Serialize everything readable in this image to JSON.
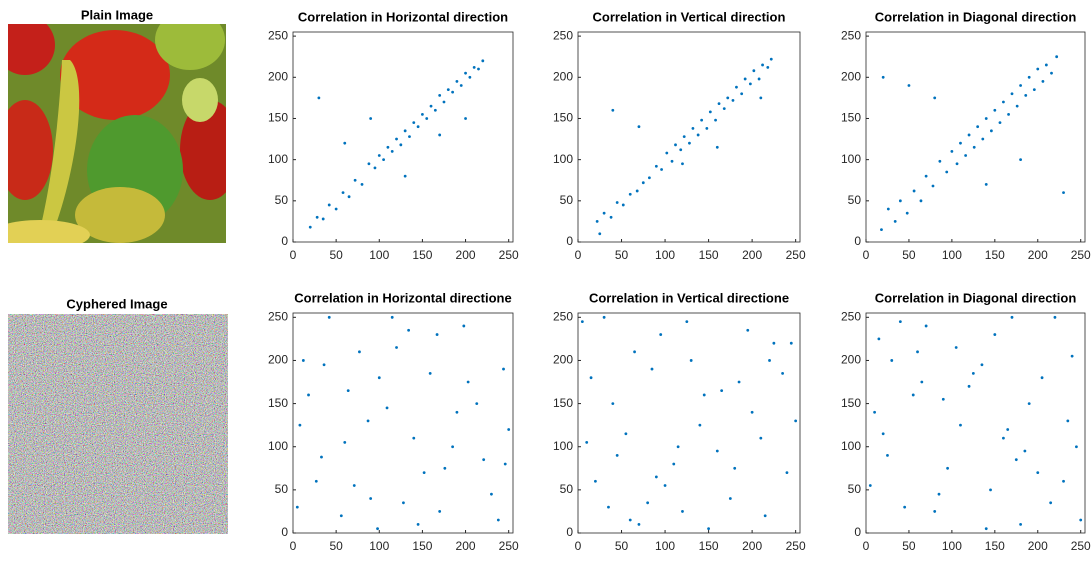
{
  "images": [
    {
      "title": "Plain Image"
    },
    {
      "title": "Cyphered Image"
    }
  ],
  "chart_data": [
    {
      "type": "scatter",
      "title": "Correlation in Horizontal direction",
      "color": "#0072bd",
      "x": [
        20,
        28,
        35,
        42,
        50,
        58,
        65,
        72,
        80,
        88,
        95,
        100,
        105,
        110,
        115,
        120,
        125,
        130,
        135,
        140,
        145,
        150,
        155,
        160,
        165,
        170,
        175,
        180,
        185,
        190,
        195,
        200,
        205,
        210,
        215,
        220,
        60,
        90,
        130,
        170,
        30,
        200
      ],
      "y": [
        18,
        30,
        28,
        45,
        40,
        60,
        55,
        75,
        70,
        95,
        90,
        105,
        100,
        115,
        110,
        125,
        118,
        135,
        128,
        145,
        140,
        155,
        150,
        165,
        160,
        178,
        170,
        185,
        182,
        195,
        190,
        205,
        200,
        212,
        210,
        220,
        120,
        150,
        80,
        130,
        175,
        150
      ],
      "xlim": [
        0,
        255
      ],
      "ylim": [
        0,
        255
      ],
      "xticks": [
        0,
        50,
        100,
        150,
        200,
        250
      ],
      "yticks": [
        0,
        50,
        100,
        150,
        200,
        250
      ]
    },
    {
      "type": "scatter",
      "title": "Correlation in Vertical direction",
      "color": "#0072bd",
      "x": [
        22,
        30,
        38,
        45,
        52,
        60,
        68,
        75,
        82,
        90,
        96,
        102,
        108,
        112,
        118,
        122,
        128,
        132,
        138,
        142,
        148,
        152,
        158,
        162,
        168,
        172,
        178,
        182,
        188,
        192,
        198,
        202,
        208,
        212,
        218,
        222,
        40,
        70,
        120,
        160,
        210,
        25
      ],
      "y": [
        25,
        35,
        30,
        48,
        45,
        58,
        62,
        72,
        78,
        92,
        88,
        108,
        98,
        118,
        112,
        128,
        120,
        138,
        130,
        148,
        138,
        158,
        148,
        168,
        162,
        175,
        172,
        188,
        180,
        198,
        192,
        208,
        198,
        215,
        212,
        222,
        160,
        140,
        95,
        115,
        175,
        10
      ],
      "xlim": [
        0,
        255
      ],
      "ylim": [
        0,
        255
      ],
      "xticks": [
        0,
        50,
        100,
        150,
        200,
        250
      ],
      "yticks": [
        0,
        50,
        100,
        150,
        200,
        250
      ]
    },
    {
      "type": "scatter",
      "title": "Correlation in Diagonal direction",
      "color": "#0072bd",
      "x": [
        18,
        26,
        34,
        40,
        48,
        56,
        64,
        70,
        78,
        86,
        94,
        100,
        106,
        110,
        116,
        120,
        126,
        130,
        136,
        140,
        146,
        150,
        156,
        160,
        166,
        170,
        176,
        180,
        186,
        190,
        196,
        200,
        206,
        210,
        216,
        222,
        20,
        50,
        80,
        140,
        180,
        230
      ],
      "y": [
        15,
        40,
        25,
        50,
        35,
        62,
        50,
        80,
        68,
        98,
        85,
        110,
        95,
        120,
        105,
        130,
        115,
        140,
        125,
        150,
        135,
        160,
        145,
        170,
        155,
        180,
        165,
        190,
        178,
        200,
        185,
        210,
        195,
        215,
        205,
        225,
        200,
        190,
        175,
        70,
        100,
        60
      ],
      "xlim": [
        0,
        255
      ],
      "ylim": [
        0,
        255
      ],
      "xticks": [
        0,
        50,
        100,
        150,
        200,
        250
      ],
      "yticks": [
        0,
        50,
        100,
        150,
        200,
        250
      ]
    },
    {
      "type": "scatter",
      "title": "Correlation in Horizontal directione",
      "color": "#0072bd",
      "x": [
        12,
        230,
        87,
        145,
        33,
        198,
        64,
        176,
        5,
        120,
        250,
        71,
        159,
        42,
        213,
        98,
        185,
        27,
        134,
        244,
        56,
        109,
        167,
        221,
        8,
        90,
        203,
        140,
        18,
        238,
        77,
        152,
        115,
        60,
        190,
        36,
        128,
        246,
        100,
        170
      ],
      "y": [
        200,
        45,
        130,
        10,
        88,
        240,
        165,
        75,
        30,
        215,
        120,
        55,
        185,
        250,
        150,
        5,
        100,
        60,
        235,
        190,
        20,
        145,
        230,
        85,
        125,
        40,
        175,
        110,
        160,
        15,
        210,
        70,
        250,
        105,
        140,
        195,
        35,
        80,
        180,
        25
      ],
      "xlim": [
        0,
        255
      ],
      "ylim": [
        0,
        255
      ],
      "xticks": [
        0,
        50,
        100,
        150,
        200,
        250
      ],
      "yticks": [
        0,
        50,
        100,
        150,
        200,
        250
      ]
    },
    {
      "type": "scatter",
      "title": "Correlation in Vertical directione",
      "color": "#0072bd",
      "x": [
        40,
        215,
        95,
        160,
        20,
        185,
        70,
        130,
        250,
        5,
        110,
        225,
        55,
        175,
        145,
        85,
        30,
        240,
        120,
        200,
        65,
        150,
        10,
        195,
        100,
        235,
        45,
        165,
        80,
        210,
        125,
        15,
        180,
        60,
        245,
        140,
        90,
        220,
        35,
        115
      ],
      "y": [
        150,
        20,
        230,
        95,
        60,
        175,
        10,
        200,
        130,
        245,
        80,
        220,
        115,
        40,
        160,
        190,
        250,
        70,
        25,
        140,
        210,
        5,
        105,
        235,
        55,
        185,
        90,
        165,
        35,
        110,
        245,
        180,
        75,
        15,
        220,
        125,
        65,
        200,
        30,
        100
      ],
      "xlim": [
        0,
        255
      ],
      "ylim": [
        0,
        255
      ],
      "xticks": [
        0,
        50,
        100,
        150,
        200,
        250
      ],
      "yticks": [
        0,
        50,
        100,
        150,
        200,
        250
      ]
    },
    {
      "type": "scatter",
      "title": "Correlation in Diagonal direction",
      "color": "#0072bd",
      "x": [
        25,
        205,
        80,
        150,
        10,
        230,
        60,
        180,
        120,
        245,
        40,
        165,
        95,
        215,
        135,
        5,
        190,
        70,
        250,
        110,
        30,
        175,
        140,
        55,
        220,
        85,
        160,
        15,
        200,
        125,
        235,
        45,
        105,
        185,
        65,
        145,
        240,
        20,
        170,
        90
      ],
      "y": [
        90,
        180,
        25,
        230,
        140,
        60,
        210,
        10,
        170,
        100,
        245,
        120,
        75,
        35,
        195,
        55,
        150,
        240,
        15,
        125,
        200,
        85,
        5,
        160,
        250,
        45,
        110,
        225,
        70,
        185,
        130,
        30,
        215,
        95,
        175,
        50,
        205,
        115,
        250,
        155
      ],
      "xlim": [
        0,
        255
      ],
      "ylim": [
        0,
        255
      ],
      "xticks": [
        0,
        50,
        100,
        150,
        200,
        250
      ],
      "yticks": [
        0,
        50,
        100,
        150,
        200,
        250
      ]
    }
  ]
}
